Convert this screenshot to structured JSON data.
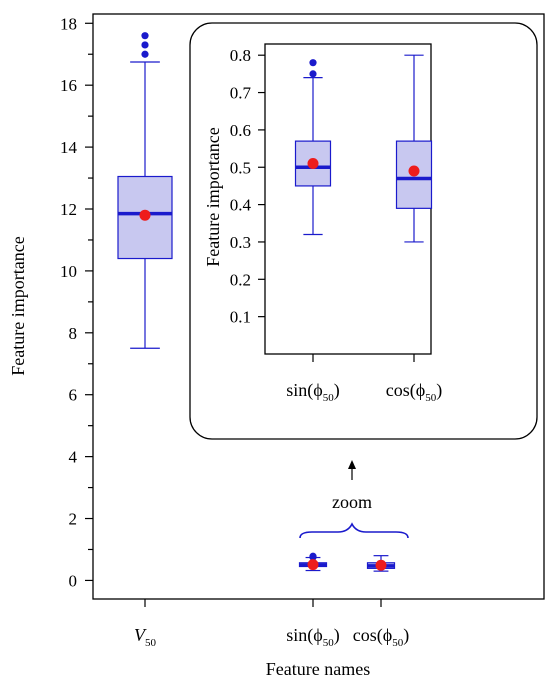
{
  "chart_data": [
    {
      "type": "box",
      "xlabel": "Feature names",
      "ylabel": "Feature importance",
      "ylim": [
        -0.6,
        18.3
      ],
      "yticks_labeled": [
        0,
        2,
        4,
        6,
        8,
        10,
        12,
        14,
        16,
        18
      ],
      "yticks_minor": [
        1,
        3,
        5,
        7,
        9,
        11,
        13,
        15,
        17
      ],
      "grid": false,
      "boxes": [
        {
          "label_base": "V",
          "label_sub": "50",
          "whisker_low": 7.5,
          "q1": 10.4,
          "median": 11.85,
          "q3": 13.05,
          "whisker_high": 16.75,
          "mean": 11.8,
          "outliers": [
            17.0,
            17.3,
            17.6
          ]
        },
        {
          "label_base": "sin(ϕ",
          "label_sub": "50",
          "label_tail": ")",
          "whisker_low": 0.32,
          "q1": 0.45,
          "median": 0.5,
          "q3": 0.57,
          "whisker_high": 0.74,
          "mean": 0.51,
          "outliers": [
            0.75,
            0.78
          ]
        },
        {
          "label_base": "cos(ϕ",
          "label_sub": "50",
          "label_tail": ")",
          "whisker_low": 0.3,
          "q1": 0.39,
          "median": 0.47,
          "q3": 0.57,
          "whisker_high": 0.8,
          "mean": 0.49,
          "outliers": []
        }
      ]
    },
    {
      "type": "box",
      "role": "inset zoom",
      "ylabel": "Feature importance",
      "ylim": [
        0.0,
        0.83
      ],
      "yticks": [
        0.1,
        0.2,
        0.3,
        0.4,
        0.5,
        0.6,
        0.7,
        0.8
      ],
      "boxes": [
        "sin(ϕ50)",
        "cos(ϕ50)"
      ]
    }
  ],
  "annotation": {
    "zoom_label": "zoom"
  },
  "colors": {
    "box_fill": "#c8c8f0",
    "box_stroke": "#1a1acc",
    "median": "#1a1acc",
    "outlier": "#1a1acc",
    "mean": "#ee1c1c",
    "axis": "#000000"
  }
}
